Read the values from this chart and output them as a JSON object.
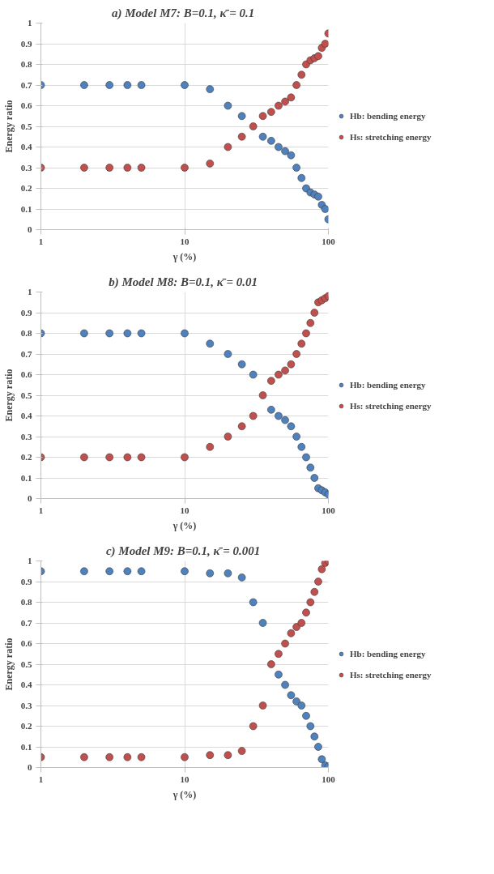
{
  "chart_data": [
    {
      "type": "scatter",
      "title": "a)  Model M7: B=0.1, κ̄ = 0.1",
      "xlabel": "γ (%)",
      "ylabel": "Energy ratio",
      "log": "x",
      "grid": true,
      "legend": "right",
      "marker": "circle",
      "x": [
        1,
        2,
        3,
        4,
        5,
        10,
        15,
        20,
        25,
        30,
        35,
        40,
        45,
        50,
        55,
        60,
        65,
        70,
        75,
        80,
        85,
        90,
        95,
        100
      ],
      "xlim": [
        1,
        100
      ],
      "xticks": [
        1,
        10,
        100
      ],
      "ylim": [
        0,
        1
      ],
      "yticks": [
        0,
        0.1,
        0.2,
        0.3,
        0.4,
        0.5,
        0.6,
        0.7,
        0.8,
        0.9,
        1
      ],
      "series": [
        {
          "name": "Hb: bending energy",
          "color": "#4f81bd",
          "values": [
            0.7,
            0.7,
            0.7,
            0.7,
            0.7,
            0.7,
            0.68,
            0.6,
            0.55,
            null,
            0.45,
            0.43,
            0.4,
            0.38,
            0.36,
            0.3,
            0.25,
            0.2,
            0.18,
            0.17,
            0.16,
            0.12,
            0.1,
            0.05
          ]
        },
        {
          "name": "Hs: stretching energy",
          "color": "#c0504d",
          "values": [
            0.3,
            0.3,
            0.3,
            0.3,
            0.3,
            0.3,
            0.32,
            0.4,
            0.45,
            0.5,
            0.55,
            0.57,
            0.6,
            0.62,
            0.64,
            0.7,
            0.75,
            0.8,
            0.82,
            0.83,
            0.84,
            0.88,
            0.9,
            0.95
          ]
        }
      ]
    },
    {
      "type": "scatter",
      "title": "b)  Model M8: B=0.1, κ̄ = 0.01",
      "xlabel": "γ (%)",
      "ylabel": "Energy ratio",
      "log": "x",
      "grid": true,
      "legend": "right",
      "marker": "circle",
      "x": [
        1,
        2,
        3,
        4,
        5,
        10,
        15,
        20,
        25,
        30,
        35,
        40,
        45,
        50,
        55,
        60,
        65,
        70,
        75,
        80,
        85,
        90,
        95,
        100
      ],
      "xlim": [
        1,
        100
      ],
      "xticks": [
        1,
        10,
        100
      ],
      "ylim": [
        0,
        1
      ],
      "yticks": [
        0,
        0.1,
        0.2,
        0.3,
        0.4,
        0.5,
        0.6,
        0.7,
        0.8,
        0.9,
        1
      ],
      "series": [
        {
          "name": "Hb: bending energy",
          "color": "#4f81bd",
          "values": [
            0.8,
            0.8,
            0.8,
            0.8,
            0.8,
            0.8,
            0.75,
            0.7,
            0.65,
            0.6,
            null,
            0.43,
            0.4,
            0.38,
            0.35,
            0.3,
            0.25,
            0.2,
            0.15,
            0.1,
            0.05,
            0.04,
            0.03,
            0.02
          ]
        },
        {
          "name": "Hs: stretching energy",
          "color": "#c0504d",
          "values": [
            0.2,
            0.2,
            0.2,
            0.2,
            0.2,
            0.2,
            0.25,
            0.3,
            0.35,
            0.4,
            0.5,
            0.57,
            0.6,
            0.62,
            0.65,
            0.7,
            0.75,
            0.8,
            0.85,
            0.9,
            0.95,
            0.96,
            0.97,
            0.98
          ]
        }
      ]
    },
    {
      "type": "scatter",
      "title": "c)  Model M9: B=0.1, κ̄ = 0.001",
      "xlabel": "γ (%)",
      "ylabel": "Energy ratio",
      "log": "x",
      "grid": true,
      "legend": "right",
      "marker": "circle",
      "x": [
        1,
        2,
        3,
        4,
        5,
        10,
        15,
        20,
        25,
        30,
        35,
        40,
        45,
        50,
        55,
        60,
        65,
        70,
        75,
        80,
        85,
        90,
        95,
        100
      ],
      "xlim": [
        1,
        100
      ],
      "xticks": [
        1,
        10,
        100
      ],
      "ylim": [
        0,
        1
      ],
      "yticks": [
        0,
        0.1,
        0.2,
        0.3,
        0.4,
        0.5,
        0.6,
        0.7,
        0.8,
        0.9,
        1
      ],
      "series": [
        {
          "name": "Hb: bending energy",
          "color": "#4f81bd",
          "values": [
            0.95,
            0.95,
            0.95,
            0.95,
            0.95,
            0.95,
            0.94,
            0.94,
            0.92,
            0.8,
            0.7,
            null,
            0.45,
            0.4,
            0.35,
            0.32,
            0.3,
            0.25,
            0.2,
            0.15,
            0.1,
            0.04,
            0.01,
            0.005
          ]
        },
        {
          "name": "Hs: stretching energy",
          "color": "#c0504d",
          "values": [
            0.05,
            0.05,
            0.05,
            0.05,
            0.05,
            0.05,
            0.06,
            0.06,
            0.08,
            0.2,
            0.3,
            0.5,
            0.55,
            0.6,
            0.65,
            0.68,
            0.7,
            0.75,
            0.8,
            0.85,
            0.9,
            0.96,
            0.99,
            1
          ]
        }
      ]
    }
  ]
}
